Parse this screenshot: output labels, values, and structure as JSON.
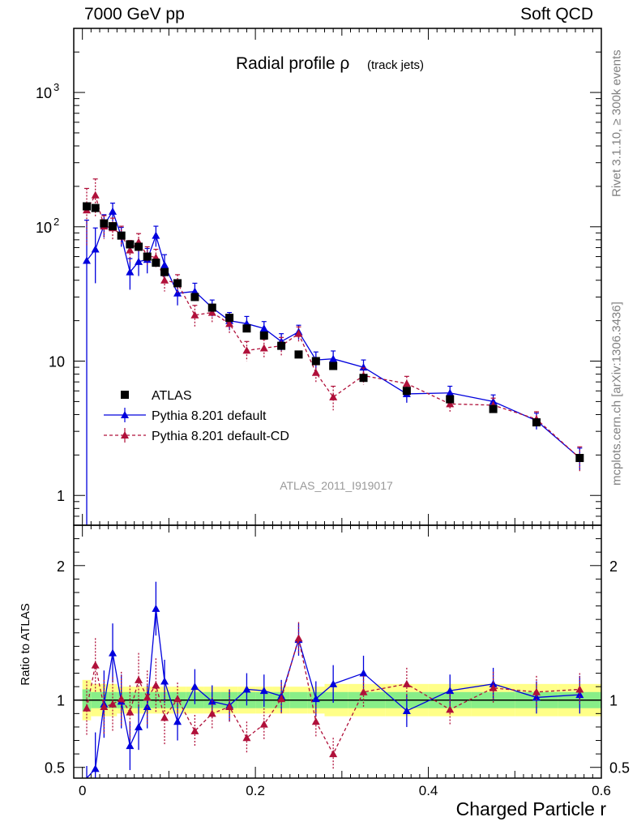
{
  "header": {
    "left": "7000 GeV pp",
    "right": "Soft QCD"
  },
  "side_labels": {
    "rivet": "Rivet 3.1.10, ≥ 300k events",
    "site": "mcplots.cern.ch [arXiv:1306.3436]"
  },
  "chart_data": {
    "type": "scatter",
    "title_main": "Radial profile ρ",
    "title_sub": "(track jets)",
    "analysis_tag": "ATLAS_2011_I919017",
    "xlabel": "Charged Particle r",
    "ylabel_ratio": "Ratio to ATLAS",
    "xlim": [
      -0.01,
      0.6
    ],
    "ylim_main": [
      0.6,
      3000
    ],
    "ylim_ratio": [
      0.42,
      2.3
    ],
    "log_y_main": true,
    "x_ticks": [
      "0",
      "0.2",
      "0.4",
      "0.6"
    ],
    "y_ticks_main": [
      "1",
      "10",
      "10^2",
      "10^3"
    ],
    "y_ticks_ratio": [
      "0.5",
      "1",
      "2"
    ],
    "legend": [
      {
        "label": "ATLAS",
        "color": "#000000",
        "marker": "square"
      },
      {
        "label": "Pythia 8.201 default",
        "color": "#0000dd",
        "marker": "triangle"
      },
      {
        "label": "Pythia 8.201 default-CD",
        "color": "#b0103a",
        "marker": "triangle"
      }
    ],
    "x": [
      0.005,
      0.015,
      0.025,
      0.035,
      0.045,
      0.055,
      0.065,
      0.075,
      0.085,
      0.095,
      0.11,
      0.13,
      0.15,
      0.17,
      0.19,
      0.21,
      0.23,
      0.25,
      0.27,
      0.29,
      0.325,
      0.375,
      0.425,
      0.475,
      0.525,
      0.575
    ],
    "atlas": [
      142,
      138,
      106,
      101,
      86,
      74,
      71,
      60,
      54,
      46,
      38,
      30,
      25,
      21,
      17.5,
      15.5,
      13,
      11.2,
      10,
      9.2,
      7.5,
      6,
      5.2,
      4.4,
      3.5,
      1.9
    ],
    "atlas_band_inner": [
      0.08,
      0.06,
      0.06,
      0.06,
      0.06,
      0.06,
      0.06,
      0.06,
      0.06,
      0.06,
      0.06,
      0.06,
      0.06,
      0.06,
      0.06,
      0.06,
      0.06,
      0.06,
      0.06,
      0.06,
      0.06,
      0.06,
      0.06,
      0.06,
      0.06,
      0.06
    ],
    "atlas_band_outer": [
      0.15,
      0.12,
      0.12,
      0.12,
      0.1,
      0.1,
      0.1,
      0.1,
      0.1,
      0.1,
      0.1,
      0.1,
      0.1,
      0.1,
      0.1,
      0.1,
      0.1,
      0.1,
      0.1,
      0.12,
      0.12,
      0.12,
      0.12,
      0.12,
      0.12,
      0.12
    ],
    "series": [
      {
        "name": "Pythia 8.201 default",
        "color": "#0000dd",
        "values": [
          56,
          68,
          103,
          130,
          85,
          46,
          55,
          57,
          86,
          52,
          32,
          33,
          25,
          20,
          19,
          17.5,
          14,
          16.5,
          10.2,
          10.4,
          9,
          5.7,
          5.8,
          5,
          3.6,
          1.9
        ],
        "errors": [
          56,
          30,
          20,
          20,
          14,
          12,
          12,
          12,
          15,
          10,
          6,
          5,
          3.5,
          3,
          2.5,
          2.2,
          2,
          2,
          1.5,
          1.5,
          1.2,
          0.8,
          0.7,
          0.6,
          0.5,
          0.35
        ],
        "ratio": [
          0.36,
          0.49,
          0.97,
          1.35,
          0.99,
          0.66,
          0.8,
          0.95,
          1.68,
          1.14,
          0.84,
          1.1,
          0.99,
          0.96,
          1.08,
          1.07,
          1.03,
          1.45,
          1.01,
          1.12,
          1.2,
          0.92,
          1.07,
          1.12,
          1.02,
          1.04
        ],
        "ratio_err": [
          0.15,
          0.27,
          0.25,
          0.22,
          0.2,
          0.18,
          0.17,
          0.16,
          0.2,
          0.16,
          0.14,
          0.13,
          0.12,
          0.12,
          0.12,
          0.12,
          0.12,
          0.12,
          0.13,
          0.14,
          0.13,
          0.12,
          0.12,
          0.12,
          0.12,
          0.14
        ]
      },
      {
        "name": "Pythia 8.201 default-CD",
        "color": "#b0103a",
        "values": [
          133,
          172,
          101,
          98,
          87,
          67,
          77,
          61,
          59,
          40,
          38,
          22,
          23,
          19,
          12,
          12.5,
          13,
          16,
          8.2,
          5.4,
          7.8,
          6.8,
          4.8,
          4.7,
          3.7,
          1.9
        ],
        "errors": [
          60,
          55,
          20,
          18,
          14,
          12,
          12,
          10,
          9,
          7,
          6,
          4,
          3.5,
          3,
          2,
          2,
          2,
          2,
          1.3,
          1.1,
          1.1,
          0.9,
          0.6,
          0.6,
          0.5,
          0.4
        ],
        "ratio": [
          0.94,
          1.26,
          0.95,
          0.97,
          1.01,
          0.91,
          1.15,
          1.02,
          1.11,
          0.87,
          1.01,
          0.77,
          0.9,
          0.95,
          0.72,
          0.82,
          1.01,
          1.46,
          0.84,
          0.6,
          1.06,
          1.12,
          0.93,
          1.09,
          1.06,
          1.08
        ]
      }
    ]
  }
}
